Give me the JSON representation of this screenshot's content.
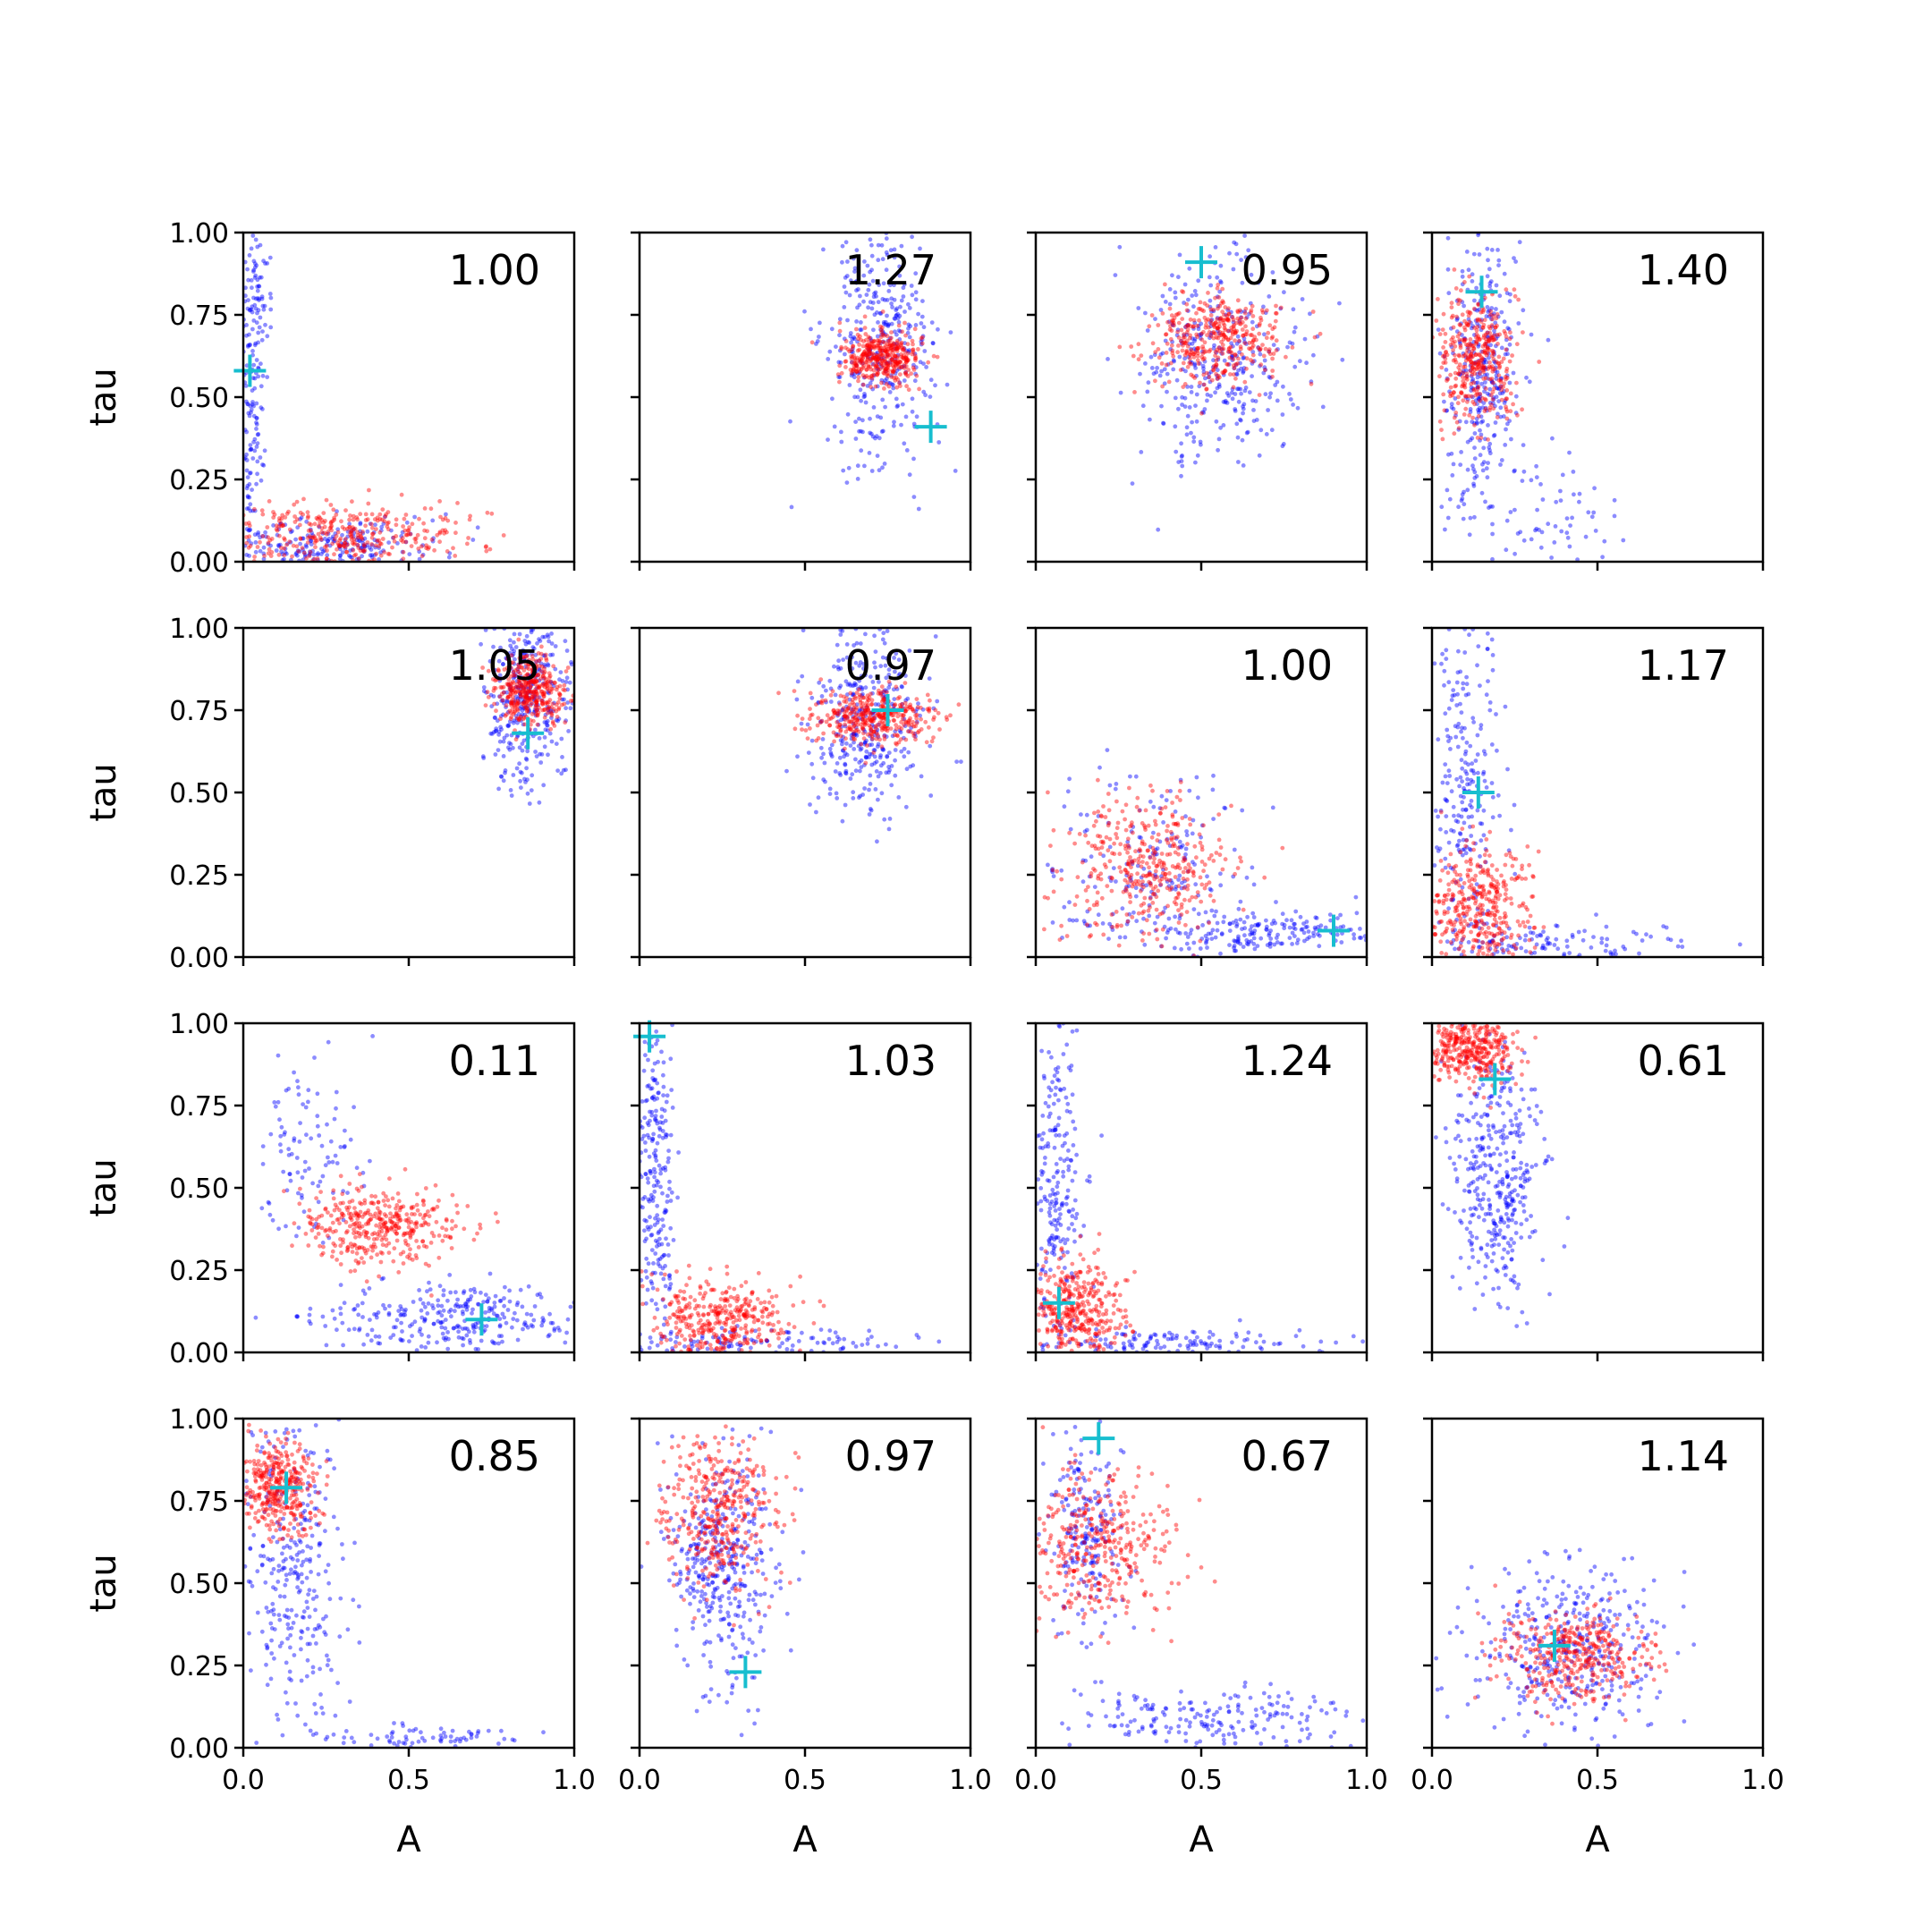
{
  "chart_data": {
    "type": "scatter",
    "layout": {
      "rows": 4,
      "cols": 4
    },
    "xlabel": "A",
    "ylabel": "tau",
    "xlim": [
      0,
      1
    ],
    "ylim": [
      0,
      1
    ],
    "xticks": [
      "0.0",
      "0.5",
      "1.0"
    ],
    "yticks": [
      "0.00",
      "0.25",
      "0.50",
      "0.75",
      "1.00"
    ],
    "colors": {
      "series_a": "#0000ff",
      "series_b": "#ff0000",
      "marker": "#17becf"
    },
    "panels": [
      {
        "label": "1.00",
        "marker": [
          0.02,
          0.58
        ],
        "series_a": [
          {
            "cx": 0.02,
            "cy": 0.55,
            "sx": 0.02,
            "sy": 0.28,
            "n": 170
          },
          {
            "cx": 0.25,
            "cy": 0.05,
            "sx": 0.18,
            "sy": 0.04,
            "n": 240
          },
          {
            "cx": 0.05,
            "cy": 0.85,
            "sx": 0.02,
            "sy": 0.1,
            "n": 40
          }
        ],
        "series_b": [
          {
            "cx": 0.3,
            "cy": 0.08,
            "sx": 0.18,
            "sy": 0.05,
            "n": 360
          }
        ]
      },
      {
        "label": "1.27",
        "marker": [
          0.88,
          0.41
        ],
        "series_a": [
          {
            "cx": 0.72,
            "cy": 0.65,
            "sx": 0.08,
            "sy": 0.18,
            "n": 360
          }
        ],
        "series_b": [
          {
            "cx": 0.73,
            "cy": 0.62,
            "sx": 0.06,
            "sy": 0.04,
            "n": 380
          }
        ]
      },
      {
        "label": "0.95",
        "marker": [
          0.5,
          0.91
        ],
        "series_a": [
          {
            "cx": 0.55,
            "cy": 0.62,
            "sx": 0.12,
            "sy": 0.15,
            "n": 360
          }
        ],
        "series_b": [
          {
            "cx": 0.55,
            "cy": 0.68,
            "sx": 0.1,
            "sy": 0.07,
            "n": 380
          }
        ]
      },
      {
        "label": "1.40",
        "marker": [
          0.15,
          0.82
        ],
        "series_a": [
          {
            "cx": 0.15,
            "cy": 0.6,
            "sx": 0.06,
            "sy": 0.2,
            "n": 320
          },
          {
            "cx": 0.3,
            "cy": 0.15,
            "sx": 0.15,
            "sy": 0.1,
            "n": 80
          }
        ],
        "series_b": [
          {
            "cx": 0.13,
            "cy": 0.62,
            "sx": 0.06,
            "sy": 0.1,
            "n": 380
          }
        ]
      },
      {
        "label": "1.05",
        "marker": [
          0.86,
          0.68
        ],
        "series_a": [
          {
            "cx": 0.86,
            "cy": 0.78,
            "sx": 0.06,
            "sy": 0.14,
            "n": 360
          }
        ],
        "series_b": [
          {
            "cx": 0.86,
            "cy": 0.81,
            "sx": 0.05,
            "sy": 0.05,
            "n": 380
          }
        ]
      },
      {
        "label": "0.97",
        "marker": [
          0.75,
          0.75
        ],
        "series_a": [
          {
            "cx": 0.68,
            "cy": 0.72,
            "sx": 0.09,
            "sy": 0.14,
            "n": 360
          }
        ],
        "series_b": [
          {
            "cx": 0.7,
            "cy": 0.73,
            "sx": 0.09,
            "sy": 0.04,
            "n": 380
          }
        ]
      },
      {
        "label": "1.00",
        "marker": [
          0.9,
          0.08
        ],
        "series_a": [
          {
            "cx": 0.35,
            "cy": 0.27,
            "sx": 0.16,
            "sy": 0.15,
            "n": 200
          },
          {
            "cx": 0.7,
            "cy": 0.07,
            "sx": 0.18,
            "sy": 0.03,
            "n": 200
          }
        ],
        "series_b": [
          {
            "cx": 0.33,
            "cy": 0.27,
            "sx": 0.13,
            "sy": 0.11,
            "n": 380
          }
        ]
      },
      {
        "label": "1.17",
        "marker": [
          0.14,
          0.5
        ],
        "series_a": [
          {
            "cx": 0.1,
            "cy": 0.55,
            "sx": 0.05,
            "sy": 0.28,
            "n": 250
          },
          {
            "cx": 0.35,
            "cy": 0.04,
            "sx": 0.2,
            "sy": 0.03,
            "n": 130
          }
        ],
        "series_b": [
          {
            "cx": 0.15,
            "cy": 0.15,
            "sx": 0.08,
            "sy": 0.1,
            "n": 380
          }
        ]
      },
      {
        "label": "0.11",
        "marker": [
          0.72,
          0.1
        ],
        "series_a": [
          {
            "cx": 0.2,
            "cy": 0.6,
            "sx": 0.08,
            "sy": 0.15,
            "n": 100
          },
          {
            "cx": 0.65,
            "cy": 0.1,
            "sx": 0.2,
            "sy": 0.05,
            "n": 300
          }
        ],
        "series_b": [
          {
            "cx": 0.4,
            "cy": 0.38,
            "sx": 0.12,
            "sy": 0.06,
            "n": 380
          }
        ]
      },
      {
        "label": "1.03",
        "marker": [
          0.03,
          0.96
        ],
        "series_a": [
          {
            "cx": 0.05,
            "cy": 0.5,
            "sx": 0.03,
            "sy": 0.28,
            "n": 260
          },
          {
            "cx": 0.35,
            "cy": 0.03,
            "sx": 0.25,
            "sy": 0.02,
            "n": 120
          }
        ],
        "series_b": [
          {
            "cx": 0.25,
            "cy": 0.1,
            "sx": 0.1,
            "sy": 0.06,
            "n": 380
          }
        ]
      },
      {
        "label": "1.24",
        "marker": [
          0.07,
          0.15
        ],
        "series_a": [
          {
            "cx": 0.06,
            "cy": 0.55,
            "sx": 0.04,
            "sy": 0.28,
            "n": 240
          },
          {
            "cx": 0.4,
            "cy": 0.03,
            "sx": 0.22,
            "sy": 0.02,
            "n": 140
          }
        ],
        "series_b": [
          {
            "cx": 0.12,
            "cy": 0.13,
            "sx": 0.07,
            "sy": 0.08,
            "n": 380
          }
        ]
      },
      {
        "label": "0.61",
        "marker": [
          0.19,
          0.83
        ],
        "series_a": [
          {
            "cx": 0.2,
            "cy": 0.55,
            "sx": 0.07,
            "sy": 0.2,
            "n": 380
          }
        ],
        "series_b": [
          {
            "cx": 0.12,
            "cy": 0.92,
            "sx": 0.07,
            "sy": 0.05,
            "n": 380
          }
        ]
      },
      {
        "label": "0.85",
        "marker": [
          0.13,
          0.79
        ],
        "series_a": [
          {
            "cx": 0.15,
            "cy": 0.5,
            "sx": 0.08,
            "sy": 0.25,
            "n": 300
          },
          {
            "cx": 0.55,
            "cy": 0.03,
            "sx": 0.2,
            "sy": 0.02,
            "n": 80
          }
        ],
        "series_b": [
          {
            "cx": 0.1,
            "cy": 0.8,
            "sx": 0.06,
            "sy": 0.07,
            "n": 380
          }
        ]
      },
      {
        "label": "0.97",
        "marker": [
          0.32,
          0.23
        ],
        "series_a": [
          {
            "cx": 0.25,
            "cy": 0.55,
            "sx": 0.08,
            "sy": 0.18,
            "n": 380
          }
        ],
        "series_b": [
          {
            "cx": 0.23,
            "cy": 0.72,
            "sx": 0.09,
            "sy": 0.12,
            "n": 380
          }
        ]
      },
      {
        "label": "0.67",
        "marker": [
          0.19,
          0.94
        ],
        "series_a": [
          {
            "cx": 0.15,
            "cy": 0.65,
            "sx": 0.06,
            "sy": 0.15,
            "n": 200
          },
          {
            "cx": 0.55,
            "cy": 0.08,
            "sx": 0.22,
            "sy": 0.05,
            "n": 200
          }
        ],
        "series_b": [
          {
            "cx": 0.18,
            "cy": 0.6,
            "sx": 0.12,
            "sy": 0.12,
            "n": 380
          }
        ]
      },
      {
        "label": "1.14",
        "marker": [
          0.37,
          0.31
        ],
        "series_a": [
          {
            "cx": 0.4,
            "cy": 0.3,
            "sx": 0.14,
            "sy": 0.12,
            "n": 380
          }
        ],
        "series_b": [
          {
            "cx": 0.42,
            "cy": 0.28,
            "sx": 0.11,
            "sy": 0.07,
            "n": 380
          }
        ]
      }
    ]
  }
}
